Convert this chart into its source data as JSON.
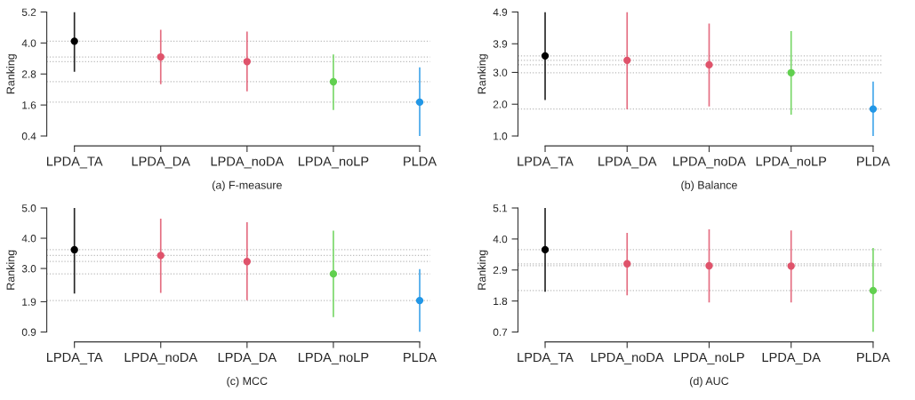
{
  "chart_data": [
    {
      "type": "scatter",
      "xlabel": "(a) F-measure",
      "ylabel": "Ranking",
      "categories": [
        "LPDA_TA",
        "LPDA_DA",
        "LPDA_noDA",
        "LPDA_noLP",
        "PLDA"
      ],
      "values": [
        4.07,
        3.46,
        3.28,
        2.5,
        1.71
      ],
      "errors": [
        [
          2.89,
          5.2
        ],
        [
          2.4,
          4.51
        ],
        [
          2.13,
          4.44
        ],
        [
          1.41,
          3.56
        ],
        [
          0.4,
          3.06
        ]
      ],
      "colors": [
        "#000000",
        "#df536b",
        "#df536b",
        "#61d04f",
        "#2297e6"
      ],
      "ylim": [
        0.4,
        5.2
      ],
      "yticks": [
        0.4,
        1.6,
        2.8,
        {
          "value": 4,
          "label": "4.0"
        },
        5.2
      ],
      "marker": "circle",
      "grid": false,
      "ref_lines": [
        {
          "axis": "y",
          "value": 4.07,
          "line_style": "dotted",
          "color": "#bbbbbb"
        },
        {
          "axis": "y",
          "value": 3.46,
          "line_style": "dotted",
          "color": "#bbbbbb"
        },
        {
          "axis": "y",
          "value": 3.28,
          "line_style": "dotted",
          "color": "#bbbbbb"
        },
        {
          "axis": "y",
          "value": 2.5,
          "line_style": "dotted",
          "color": "#bbbbbb"
        },
        {
          "axis": "y",
          "value": 1.71,
          "line_style": "dotted",
          "color": "#bbbbbb"
        }
      ]
    },
    {
      "type": "scatter",
      "xlabel": "(b) Balance",
      "ylabel": "Ranking",
      "categories": [
        "LPDA_TA",
        "LPDA_DA",
        "LPDA_noDA",
        "LPDA_noLP",
        "PLDA"
      ],
      "values": [
        3.52,
        3.38,
        3.24,
        2.99,
        1.85
      ],
      "errors": [
        [
          2.13,
          4.9
        ],
        [
          1.84,
          4.9
        ],
        [
          1.93,
          4.54
        ],
        [
          1.67,
          4.3
        ],
        [
          1.0,
          2.71
        ]
      ],
      "colors": [
        "#000000",
        "#df536b",
        "#df536b",
        "#61d04f",
        "#2297e6"
      ],
      "ylim": [
        1.0,
        4.9
      ],
      "yticks": [
        {
          "value": 1,
          "label": "1.0"
        },
        {
          "value": 2,
          "label": "2.0"
        },
        {
          "value": 3,
          "label": "3.0"
        },
        3.9,
        4.9
      ],
      "marker": "circle",
      "grid": false,
      "ref_lines": [
        {
          "axis": "y",
          "value": 3.52,
          "line_style": "dotted",
          "color": "#bbbbbb"
        },
        {
          "axis": "y",
          "value": 3.38,
          "line_style": "dotted",
          "color": "#bbbbbb"
        },
        {
          "axis": "y",
          "value": 3.24,
          "line_style": "dotted",
          "color": "#bbbbbb"
        },
        {
          "axis": "y",
          "value": 2.99,
          "line_style": "dotted",
          "color": "#bbbbbb"
        },
        {
          "axis": "y",
          "value": 1.85,
          "line_style": "dotted",
          "color": "#bbbbbb"
        }
      ]
    },
    {
      "type": "scatter",
      "xlabel": "(c) MCC",
      "ylabel": "Ranking",
      "categories": [
        "LPDA_TA",
        "LPDA_noDA",
        "LPDA_DA",
        "LPDA_noLP",
        "PLDA"
      ],
      "values": [
        3.62,
        3.43,
        3.23,
        2.82,
        1.94
      ],
      "errors": [
        [
          2.17,
          5.0
        ],
        [
          2.19,
          4.65
        ],
        [
          1.95,
          4.53
        ],
        [
          1.39,
          4.25
        ],
        [
          0.9,
          2.98
        ]
      ],
      "colors": [
        "#000000",
        "#df536b",
        "#df536b",
        "#61d04f",
        "#2297e6"
      ],
      "ylim": [
        0.9,
        5.0
      ],
      "yticks": [
        0.9,
        1.9,
        {
          "value": 3,
          "label": "3.0"
        },
        {
          "value": 4,
          "label": "4.0"
        },
        {
          "value": 5,
          "label": "5.0"
        }
      ],
      "marker": "circle",
      "grid": false,
      "ref_lines": [
        {
          "axis": "y",
          "value": 3.62,
          "line_style": "dotted",
          "color": "#bbbbbb"
        },
        {
          "axis": "y",
          "value": 3.43,
          "line_style": "dotted",
          "color": "#bbbbbb"
        },
        {
          "axis": "y",
          "value": 3.23,
          "line_style": "dotted",
          "color": "#bbbbbb"
        },
        {
          "axis": "y",
          "value": 2.82,
          "line_style": "dotted",
          "color": "#bbbbbb"
        },
        {
          "axis": "y",
          "value": 1.94,
          "line_style": "dotted",
          "color": "#bbbbbb"
        }
      ]
    },
    {
      "type": "scatter",
      "xlabel": "(d) AUC",
      "ylabel": "Ranking",
      "categories": [
        "LPDA_TA",
        "LPDA_noDA",
        "LPDA_noLP",
        "LPDA_DA",
        "PLDA"
      ],
      "values": [
        3.62,
        3.12,
        3.05,
        3.04,
        2.17
      ],
      "errors": [
        [
          2.13,
          5.1
        ],
        [
          2.0,
          4.22
        ],
        [
          1.75,
          4.34
        ],
        [
          1.75,
          4.3
        ],
        [
          0.7,
          3.68
        ]
      ],
      "colors": [
        "#000000",
        "#df536b",
        "#df536b",
        "#df536b",
        "#61d04f"
      ],
      "ylim": [
        0.7,
        5.1
      ],
      "yticks": [
        0.7,
        1.8,
        2.9,
        {
          "value": 4,
          "label": "4.0"
        },
        5.1
      ],
      "marker": "circle",
      "grid": false,
      "ref_lines": [
        {
          "axis": "y",
          "value": 3.62,
          "line_style": "dotted",
          "color": "#bbbbbb"
        },
        {
          "axis": "y",
          "value": 3.12,
          "line_style": "dotted",
          "color": "#bbbbbb"
        },
        {
          "axis": "y",
          "value": 3.05,
          "line_style": "dotted",
          "color": "#bbbbbb"
        },
        {
          "axis": "y",
          "value": 2.17,
          "line_style": "dotted",
          "color": "#bbbbbb"
        }
      ]
    }
  ]
}
